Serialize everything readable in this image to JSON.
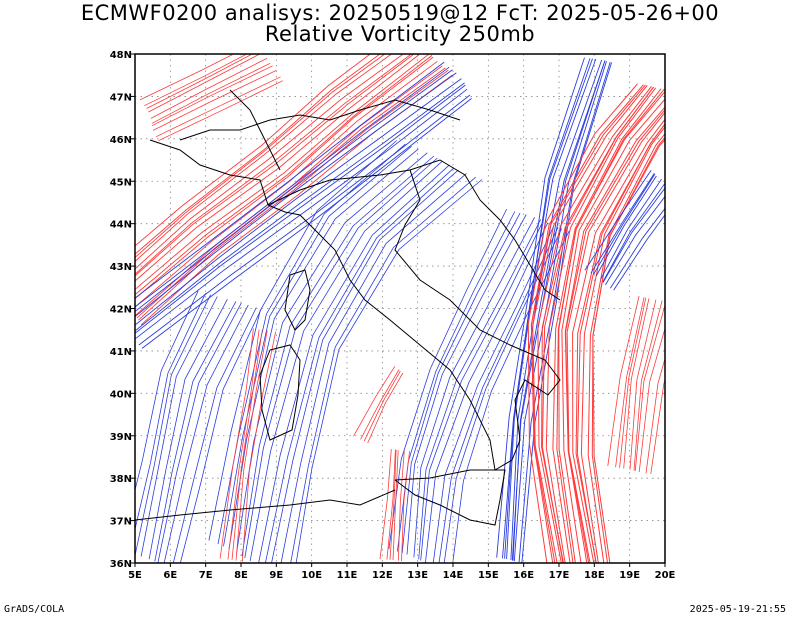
{
  "header": {
    "title_line1": "ECMWF0200 analisys: 20250519@12 FcT: 2025-05-26+00",
    "title_line2": "Relative Vorticity 250mb"
  },
  "map": {
    "lon_range": [
      5,
      20
    ],
    "lat_range": [
      36,
      48
    ],
    "lon_ticks": [
      "5E",
      "6E",
      "7E",
      "8E",
      "9E",
      "10E",
      "11E",
      "12E",
      "13E",
      "14E",
      "15E",
      "16E",
      "17E",
      "18E",
      "19E",
      "20E"
    ],
    "lat_ticks": [
      "36N",
      "37N",
      "38N",
      "39N",
      "40N",
      "41N",
      "42N",
      "43N",
      "44N",
      "45N",
      "46N",
      "47N",
      "48N"
    ],
    "colors": {
      "positive_vorticity": "#ff3b3b",
      "negative_vorticity": "#2a3de0",
      "borders": "#000000",
      "grid": "#888888"
    }
  },
  "footer": {
    "left": "GrADS/COLA",
    "right": "2025-05-19-21:55"
  }
}
